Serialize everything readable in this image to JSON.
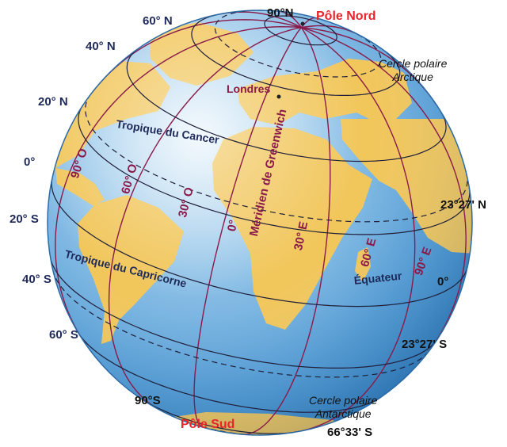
{
  "poles": {
    "north_degree": "90°N",
    "north_name": "Pôle Nord",
    "south_degree": "90°S",
    "south_name": "Pôle Sud"
  },
  "latitudes_left": {
    "n60": "60° N",
    "n40": "40° N",
    "n20": "20° N",
    "zero": "0°",
    "s20": "20° S",
    "s40": "40° S",
    "s60": "60° S"
  },
  "right_values": {
    "tropic_n": "23°27' N",
    "equator": "0°",
    "tropic_s": "23°27' S",
    "polar_s": "66°33' S"
  },
  "circles": {
    "arctic_line1": "Cercle polaire",
    "arctic_line2": "Arctique",
    "antarctic_line1": "Cercle polaire",
    "antarctic_line2": "Antarctique"
  },
  "lines": {
    "cancer": "Tropique du Cancer",
    "capricorn": "Tropique du Capricorne",
    "equator": "Équateur",
    "greenwich": "Méridien de Greenwich"
  },
  "city": "Londres",
  "meridians": {
    "w90": "90° O",
    "w60": "60° O",
    "w30": "30° O",
    "zero": "0°",
    "e30": "30° E",
    "e60": "60° E",
    "e90": "90° E"
  },
  "colors": {
    "ocean": "#5aa7dc",
    "land": "#f1c65a",
    "lines": "#8a1a4a",
    "pole_label": "#e8232a"
  }
}
